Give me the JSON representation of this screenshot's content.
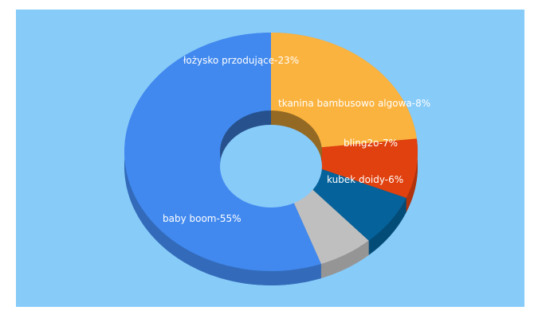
{
  "colors": {
    "background": "#87cbf9",
    "baby_boom": "#4189ef",
    "lozysko": "#fbb33f",
    "tkanina": "#e0410f",
    "bling2o": "#05629a",
    "kubek": "#c0bfbf"
  },
  "chart_data": {
    "type": "pie",
    "style": "3d-donut",
    "slices": [
      {
        "label": "baby boom-55%",
        "name": "baby boom",
        "value": 55,
        "color": "#4189ef"
      },
      {
        "label": "łożysko przodujące-23%",
        "name": "łożysko przodujące",
        "value": 23,
        "color": "#fbb33f"
      },
      {
        "label": "tkanina bambusowo algowa-8%",
        "name": "tkanina bambusowo algowa",
        "value": 8,
        "color": "#e0410f"
      },
      {
        "label": "bling2o-7%",
        "name": "bling2o",
        "value": 7,
        "color": "#05629a"
      },
      {
        "label": "kubek doidy-6%",
        "name": "kubek doidy",
        "value": 6,
        "color": "#c0bfbf"
      }
    ]
  }
}
